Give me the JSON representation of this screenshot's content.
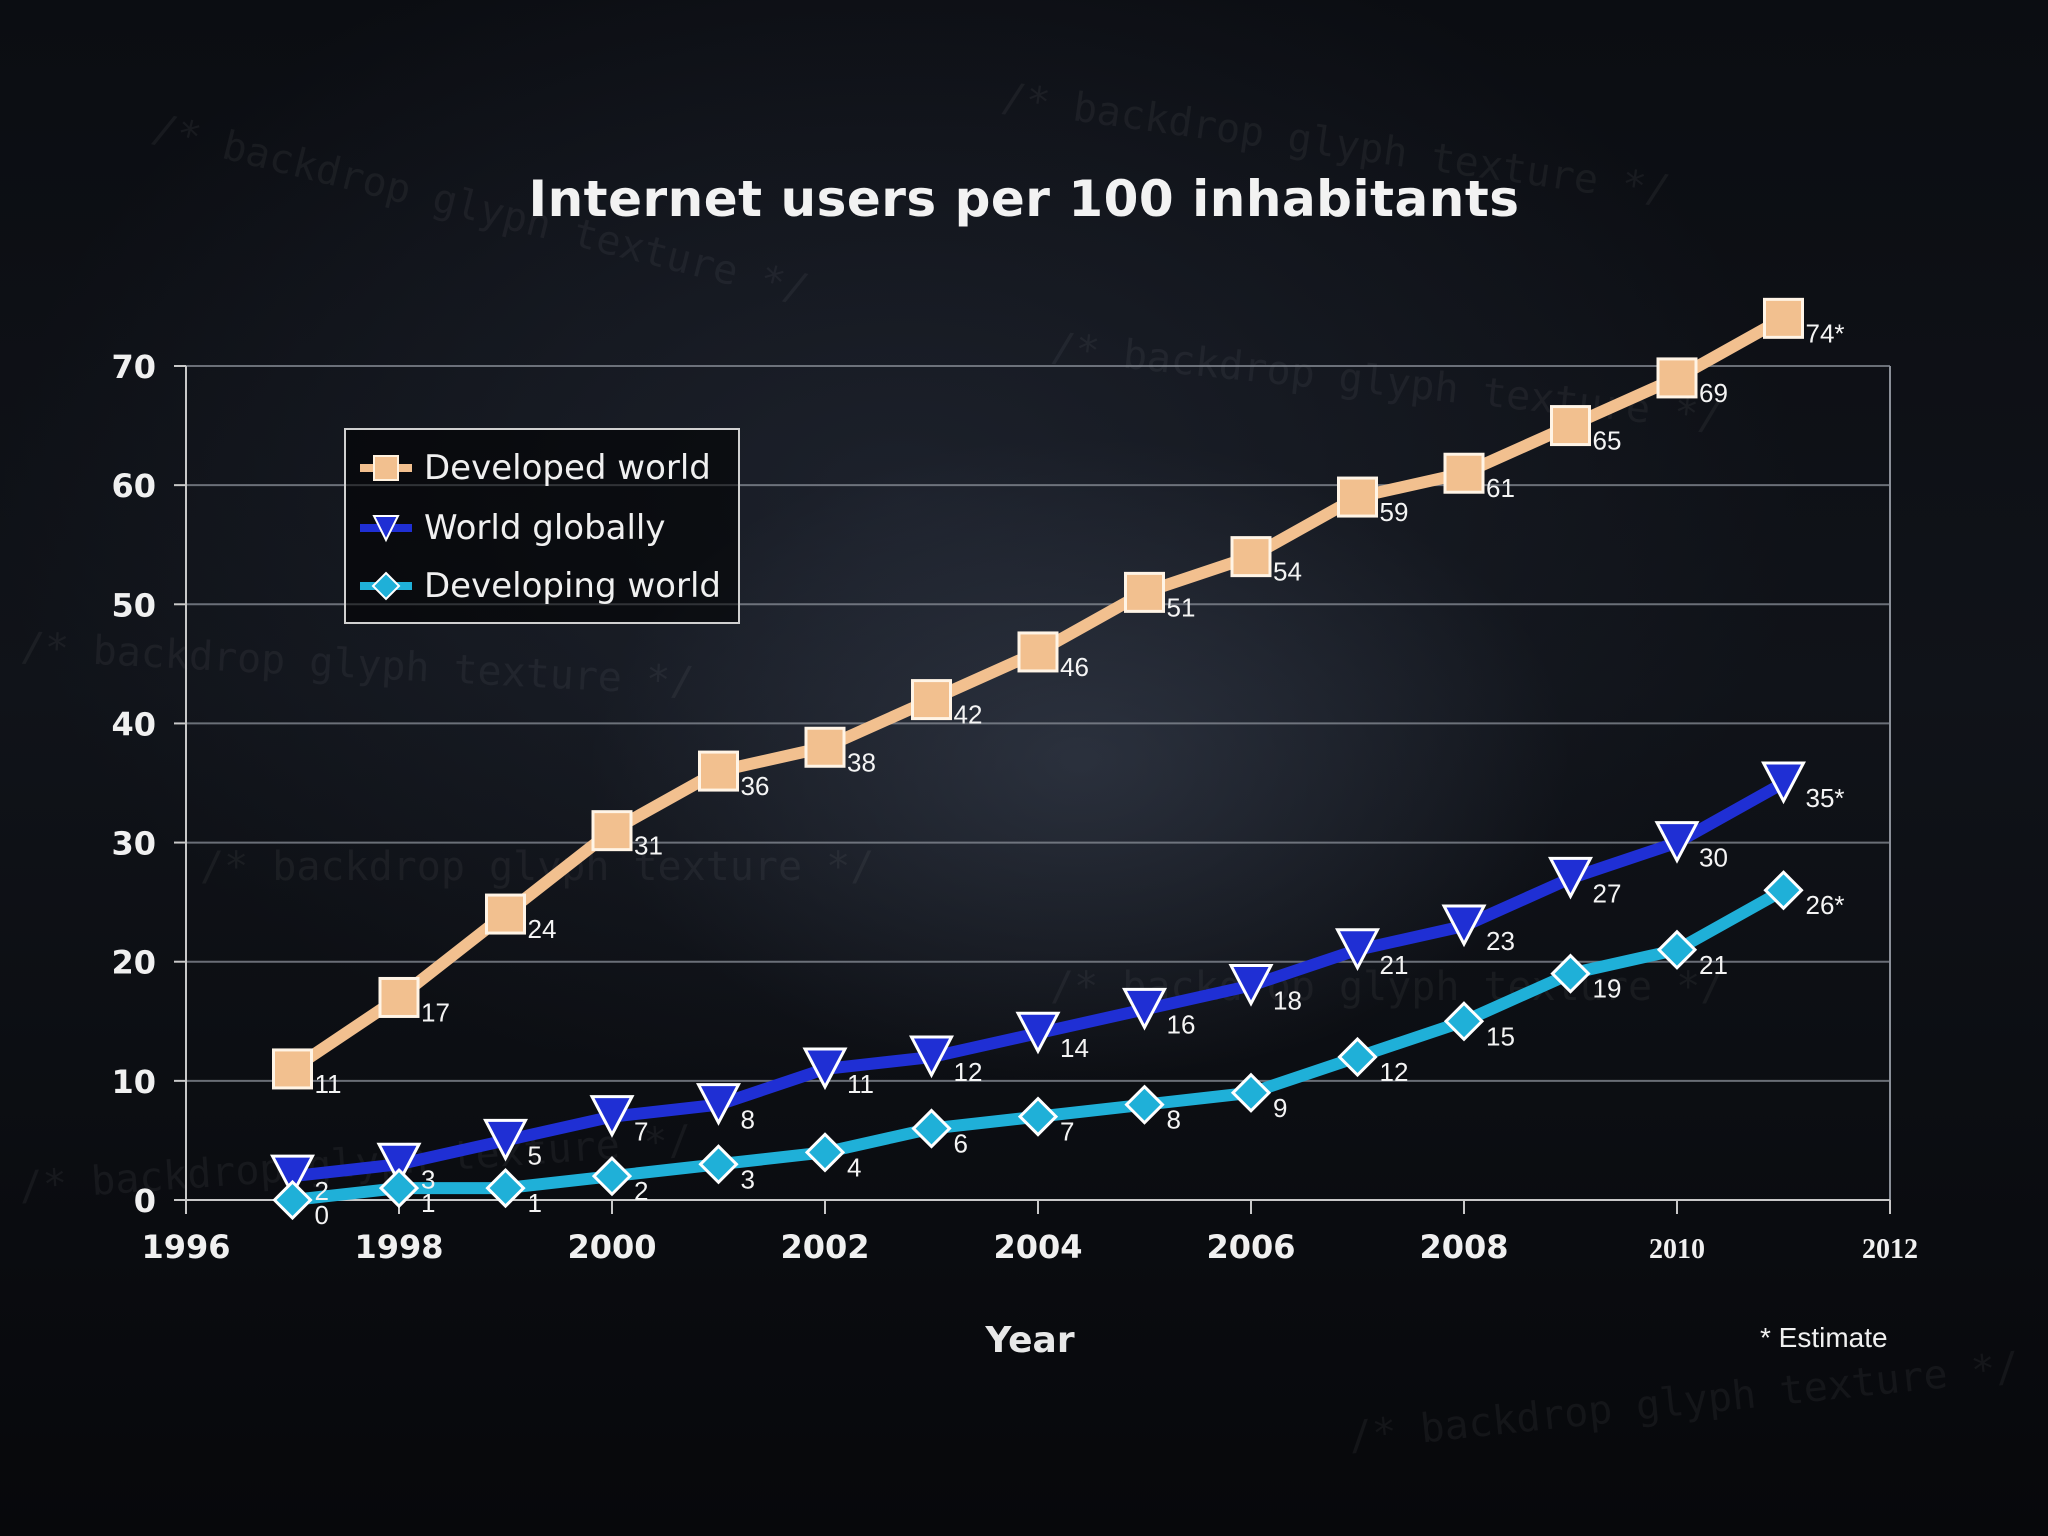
{
  "chart_data": {
    "type": "line",
    "title": "Internet users per 100 inhabitants",
    "xlabel": "Year",
    "ylabel": "",
    "xlim": [
      1996,
      2012
    ],
    "ylim": [
      0,
      70
    ],
    "x_ticks": [
      "1996",
      "1998",
      "2000",
      "2002",
      "2004",
      "2006",
      "2008",
      "2010",
      "2012"
    ],
    "y_ticks": [
      "0",
      "10",
      "20",
      "30",
      "40",
      "50",
      "60",
      "70"
    ],
    "grid": true,
    "legend_position": "top-left",
    "footnote": "* Estimate",
    "x": [
      1997,
      1998,
      1999,
      2000,
      2001,
      2002,
      2003,
      2004,
      2005,
      2006,
      2007,
      2008,
      2009,
      2010,
      2011
    ],
    "series": [
      {
        "name": "Developed world",
        "color": "#f2c08f",
        "marker": "square",
        "values": [
          11,
          17,
          24,
          31,
          36,
          38,
          42,
          46,
          51,
          54,
          59,
          61,
          65,
          69,
          74
        ],
        "labels": [
          "11",
          "17",
          "24",
          "31",
          "36",
          "38",
          "42",
          "46",
          "51",
          "54",
          "59",
          "61",
          "65",
          "69",
          "74*"
        ]
      },
      {
        "name": "World globally",
        "color": "#1f2fd4",
        "marker": "triangle-down",
        "values": [
          2,
          3,
          5,
          7,
          8,
          11,
          12,
          14,
          16,
          18,
          21,
          23,
          27,
          30,
          35
        ],
        "labels": [
          "2",
          "3",
          "5",
          "7",
          "8",
          "11",
          "12",
          "14",
          "16",
          "18",
          "21",
          "23",
          "27",
          "30",
          "35*"
        ]
      },
      {
        "name": "Developing world",
        "color": "#1fb0d8",
        "marker": "diamond",
        "values": [
          0,
          1,
          1,
          2,
          3,
          4,
          6,
          7,
          8,
          9,
          12,
          15,
          19,
          21,
          26
        ],
        "labels": [
          "0",
          "1",
          "1",
          "2",
          "3",
          "4",
          "6",
          "7",
          "8",
          "9",
          "12",
          "15",
          "19",
          "21",
          "26*"
        ]
      }
    ]
  }
}
